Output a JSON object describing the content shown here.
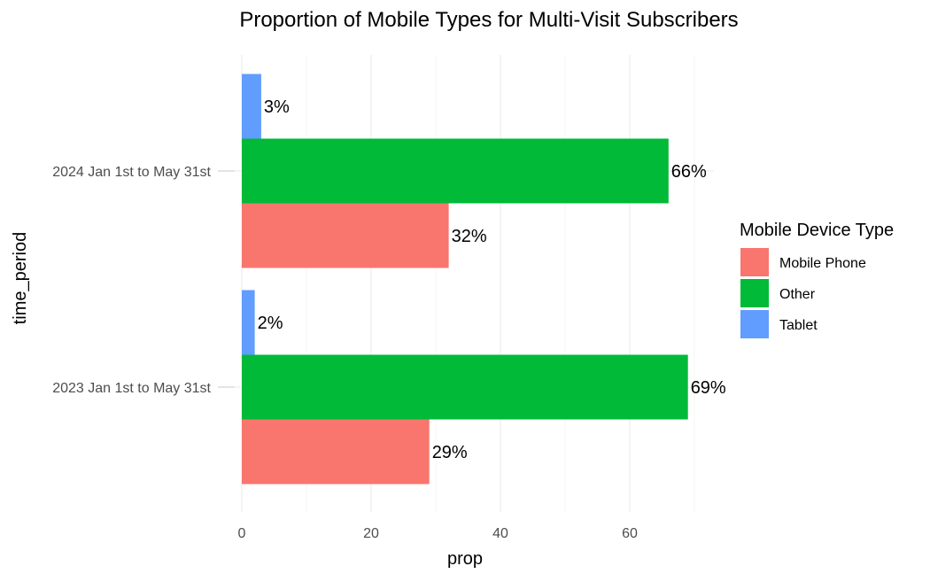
{
  "chart_data": {
    "type": "bar",
    "orientation": "horizontal",
    "title": "Proportion of Mobile Types for Multi-Visit Subscribers",
    "xlabel": "prop",
    "ylabel": "time_period",
    "categories": [
      "2023 Jan 1st to May 31st",
      "2024 Jan 1st to May 31st"
    ],
    "series": [
      {
        "name": "Mobile Phone",
        "color": "#F8766D",
        "values": [
          29,
          32
        ],
        "labels": [
          "29%",
          "32%"
        ]
      },
      {
        "name": "Other",
        "color": "#00BA38",
        "values": [
          69,
          66
        ],
        "labels": [
          "69%",
          "66%"
        ]
      },
      {
        "name": "Tablet",
        "color": "#619CFF",
        "values": [
          2,
          3
        ],
        "labels": [
          "2%",
          "3%"
        ]
      }
    ],
    "xlim": [
      0,
      70
    ],
    "xticks": [
      0,
      20,
      40,
      60
    ],
    "grid": true,
    "legend": {
      "title": "Mobile Device Type",
      "position": "right"
    }
  }
}
